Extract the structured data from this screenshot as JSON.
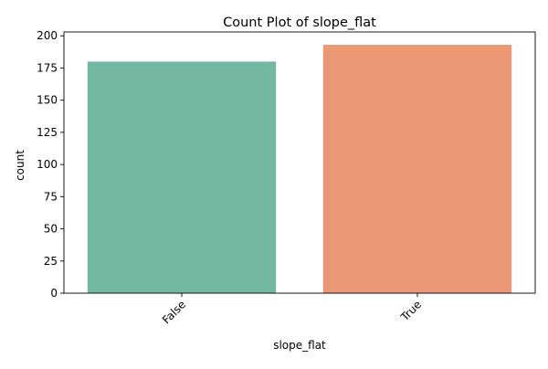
{
  "chart_data": {
    "type": "bar",
    "title": "Count Plot of slope_flat",
    "xlabel": "slope_flat",
    "ylabel": "count",
    "categories": [
      "False",
      "True"
    ],
    "values": [
      180,
      193
    ],
    "ylim": [
      0,
      203
    ],
    "yticks": [
      0,
      25,
      50,
      75,
      100,
      125,
      150,
      175,
      200
    ],
    "colors": [
      "#73b8a1",
      "#eb9875"
    ],
    "grid": false,
    "legend": "none",
    "xtick_rotation": 45
  }
}
